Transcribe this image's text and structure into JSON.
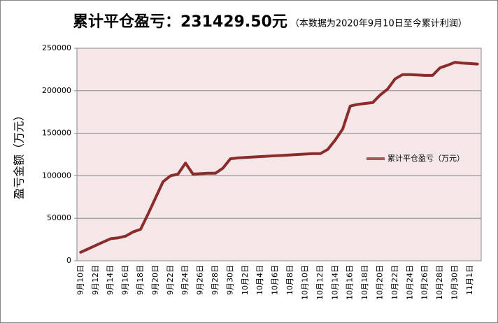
{
  "chart_data": {
    "type": "line",
    "title": "累计平仓盈亏：231429.50元",
    "subtitle": "（本数据为2020年9月10日至今累计利润）",
    "y_label": "盈亏金额（万元）",
    "categories": [
      "9月10日",
      null,
      "9月12日",
      null,
      "9月14日",
      null,
      "9月16日",
      null,
      "9月18日",
      null,
      "9月20日",
      null,
      "9月22日",
      null,
      "9月24日",
      null,
      "9月26日",
      null,
      "9月28日",
      null,
      "9月30日",
      null,
      "10月2日",
      null,
      "10月4日",
      null,
      "10月6日",
      null,
      "10月8日",
      null,
      "10月10日",
      null,
      "10月12日",
      null,
      "10月14日",
      null,
      "10月16日",
      null,
      "10月18日",
      null,
      "10月20日",
      null,
      "10月22日",
      null,
      "10月24日",
      null,
      "10月26日",
      null,
      "10月28日",
      null,
      "10月30日",
      null,
      "11月1日",
      null
    ],
    "series": [
      {
        "name": "累计平仓盈亏（万元）",
        "color": "#8b2c2c",
        "values": [
          10000,
          14000,
          18000,
          22000,
          26000,
          27000,
          29000,
          34000,
          37000,
          55000,
          74000,
          93000,
          100000,
          102000,
          115000,
          102000,
          102500,
          103000,
          103000,
          109000,
          120000,
          121000,
          121500,
          122000,
          122500,
          123000,
          123500,
          124000,
          124500,
          125000,
          125500,
          126000,
          126000,
          131000,
          142000,
          155000,
          182000,
          184000,
          185000,
          186000,
          195000,
          202000,
          214000,
          219000,
          219000,
          218500,
          218000,
          218000,
          227000,
          230000,
          233500,
          232500,
          232000,
          231429.5
        ]
      }
    ],
    "ylim": [
      0,
      250000
    ],
    "yticks": [
      0,
      50000,
      100000,
      150000,
      200000,
      250000
    ],
    "grid": true,
    "legend": "right",
    "plot_background": "#f5e7e7"
  }
}
